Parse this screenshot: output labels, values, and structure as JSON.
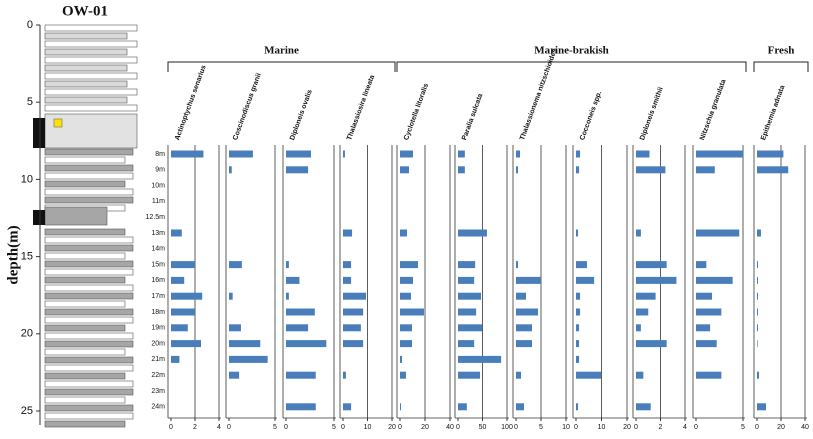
{
  "lithology": {
    "title": "OW-01",
    "ylabel": "depth(m)",
    "ylim": [
      0,
      25
    ],
    "yticks": [
      0,
      5,
      10,
      15,
      20,
      25
    ]
  },
  "chart_data": {
    "type": "bar",
    "orientation": "horizontal",
    "color": "#4a7ebb",
    "categories": [
      "8m",
      "9m",
      "10m",
      "11m",
      "12.5m",
      "13m",
      "14m",
      "15m",
      "16m",
      "17m",
      "18m",
      "19m",
      "20m",
      "21m",
      "22m",
      "23m",
      "24m"
    ],
    "groups": [
      {
        "name": "Marine",
        "series": [
          {
            "name": "Actinoptychus senarius",
            "xlim": [
              0,
              4
            ],
            "xticks": [
              0,
              2,
              4
            ],
            "values": [
              2.7,
              null,
              null,
              null,
              null,
              0.9,
              null,
              2.0,
              1.1,
              2.6,
              2.0,
              1.4,
              2.5,
              0.7,
              null,
              null,
              null
            ]
          },
          {
            "name": "Coscinodiscus granii",
            "xlim": [
              0,
              5
            ],
            "xticks": [
              0,
              5
            ],
            "values": [
              2.6,
              0.3,
              null,
              null,
              null,
              null,
              null,
              1.4,
              null,
              0.4,
              null,
              1.3,
              3.4,
              4.2,
              1.1,
              null,
              null
            ]
          },
          {
            "name": "Diploneis ovalis",
            "xlim": [
              0,
              5
            ],
            "xticks": [
              0,
              5
            ],
            "values": [
              2.6,
              2.3,
              null,
              null,
              null,
              null,
              null,
              0.3,
              1.4,
              0.3,
              3.0,
              2.3,
              4.2,
              null,
              3.1,
              null,
              3.1
            ]
          },
          {
            "name": "Thalassiosira lineata",
            "xlim": [
              0,
              20
            ],
            "xticks": [
              0,
              10,
              20
            ],
            "values": [
              0.8,
              null,
              null,
              null,
              null,
              3.7,
              null,
              3.3,
              3.3,
              9.4,
              8.2,
              7.3,
              8.2,
              null,
              1.2,
              null,
              3.3
            ]
          }
        ]
      },
      {
        "name": "Marine-brakish",
        "series": [
          {
            "name": "Cyclotella litoralis",
            "xlim": [
              0,
              40
            ],
            "xticks": [
              0,
              20,
              40
            ],
            "values": [
              10.4,
              7.2,
              null,
              null,
              null,
              5.6,
              null,
              14.4,
              10.4,
              8.8,
              19.2,
              9.6,
              9.6,
              1.6,
              4.8,
              null,
              0.8
            ]
          },
          {
            "name": "Paralia sulcata",
            "xlim": [
              0,
              100
            ],
            "xticks": [
              0,
              50,
              100
            ],
            "values": [
              14,
              14,
              null,
              null,
              null,
              59,
              null,
              35,
              33,
              47,
              37,
              49,
              33,
              88,
              45,
              null,
              18
            ]
          },
          {
            "name": "Thalassionema nitzschioides",
            "xlim": [
              0,
              10
            ],
            "xticks": [
              0,
              5,
              10
            ],
            "values": [
              0.8,
              0.4,
              null,
              null,
              null,
              null,
              null,
              0.4,
              5.0,
              2.0,
              4.4,
              3.2,
              3.2,
              null,
              1.0,
              null,
              1.6
            ]
          },
          {
            "name": "Cocconeis spp.",
            "xlim": [
              0,
              20
            ],
            "xticks": [
              0,
              10,
              20
            ],
            "values": [
              1.6,
              1.2,
              null,
              null,
              null,
              0.8,
              null,
              4.3,
              7.1,
              1.6,
              1.6,
              1.2,
              1.2,
              1.2,
              9.8,
              null,
              0.8
            ]
          },
          {
            "name": "Diploneis smithii",
            "xlim": [
              0,
              4
            ],
            "xticks": [
              0,
              2,
              4
            ],
            "values": [
              1.1,
              2.4,
              null,
              null,
              null,
              0.4,
              null,
              2.5,
              3.3,
              1.6,
              1.0,
              0.4,
              2.5,
              null,
              0.6,
              null,
              1.2
            ]
          },
          {
            "name": "Nitzschia granulata",
            "xlim": [
              0,
              5
            ],
            "xticks": [
              0,
              5
            ],
            "values": [
              5.0,
              2.0,
              null,
              null,
              null,
              4.6,
              null,
              1.1,
              3.9,
              1.7,
              2.7,
              1.5,
              2.2,
              null,
              2.7,
              null,
              null
            ]
          }
        ]
      },
      {
        "name": "Fresh",
        "series": [
          {
            "name": "Epithemia adnata",
            "xlim": [
              0,
              40
            ],
            "xticks": [
              0,
              20,
              40
            ],
            "values": [
              22,
              26,
              null,
              null,
              null,
              3.3,
              null,
              0.8,
              0.8,
              0.8,
              0.8,
              0.8,
              0.5,
              null,
              1.7,
              null,
              7.5
            ]
          }
        ]
      }
    ]
  }
}
